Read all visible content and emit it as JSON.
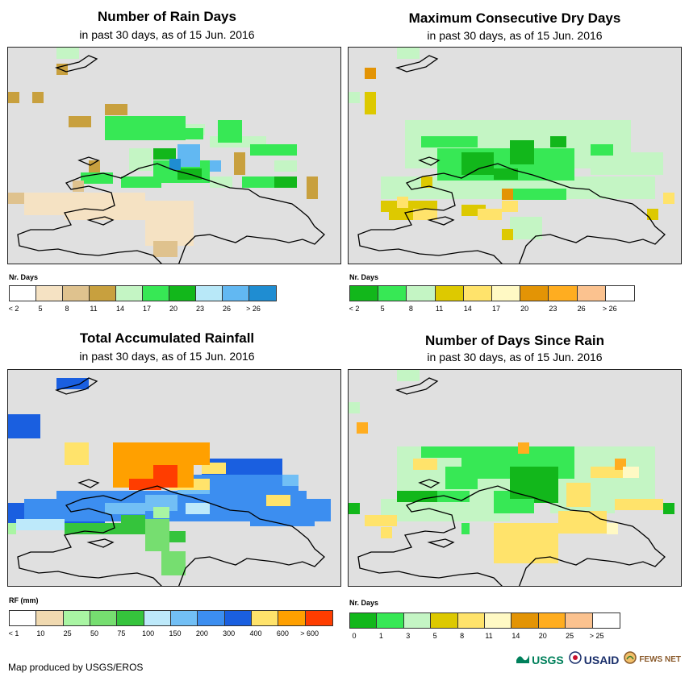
{
  "footer": {
    "credit": "Map produced by USGS/EROS"
  },
  "logos": [
    {
      "name": "USGS",
      "icon": "usgs-logo-icon",
      "color": "#00805b"
    },
    {
      "name": "USAID",
      "icon": "usaid-seal-icon",
      "color": "#1a2f6b"
    },
    {
      "name": "FEWS NET",
      "icon": "fewsnet-logo-icon",
      "color": "#8a5a2b"
    }
  ],
  "panels": [
    {
      "id": "rain-days",
      "title": "Number of Rain Days",
      "subtitle": "in past 30 days, as of 15 Jun. 2016",
      "legend_title": "Nr. Days",
      "legend_colors": [
        "#ffffff",
        "#f5e2c3",
        "#dfc28e",
        "#c8a03e",
        "#c4f5c4",
        "#37e855",
        "#12b71b",
        "#b8e8f8",
        "#62b8f2",
        "#1f8dd2"
      ],
      "legend_labels": [
        "< 2",
        "5",
        "8",
        "11",
        "14",
        "17",
        "20",
        "23",
        "26",
        "> 26"
      ]
    },
    {
      "id": "max-dry-days",
      "title": "Maximum Consecutive Dry Days",
      "subtitle": "in past 30 days, as of 15 Jun. 2016",
      "legend_title": "Nr. Days",
      "legend_colors": [
        "#12b71b",
        "#37e855",
        "#c4f5c4",
        "#ddc900",
        "#ffe36b",
        "#fff9c4",
        "#e39405",
        "#ffad20",
        "#fbc28f",
        "#ffffff"
      ],
      "legend_labels": [
        "< 2",
        "5",
        "8",
        "11",
        "14",
        "17",
        "20",
        "23",
        "26",
        "> 26"
      ]
    },
    {
      "id": "total-rainfall",
      "title": "Total Accumulated Rainfall",
      "subtitle": "in past 30 days, as of 15 Jun. 2016",
      "legend_title": "RF (mm)",
      "legend_colors": [
        "#ffffff",
        "#f0d9b0",
        "#a9f5a3",
        "#76de70",
        "#35c43c",
        "#bde9fa",
        "#72bff5",
        "#3c8ef0",
        "#1a5fe0",
        "#ffe36b",
        "#ffa000",
        "#ff3d00"
      ],
      "legend_labels": [
        "< 1",
        "10",
        "25",
        "50",
        "75",
        "100",
        "150",
        "200",
        "300",
        "400",
        "600",
        "> 600"
      ]
    },
    {
      "id": "days-since-rain",
      "title": "Number of Days Since Rain",
      "subtitle": "in past 30 days, as of 15 Jun. 2016",
      "legend_title": "Nr. Days",
      "legend_colors": [
        "#12b71b",
        "#37e855",
        "#c4f5c4",
        "#ddc900",
        "#ffe36b",
        "#fff9c4",
        "#e39405",
        "#ffad20",
        "#fbc28f",
        "#ffffff"
      ],
      "legend_labels": [
        "0",
        "1",
        "3",
        "5",
        "8",
        "11",
        "14",
        "20",
        "25",
        "> 25"
      ]
    }
  ]
}
